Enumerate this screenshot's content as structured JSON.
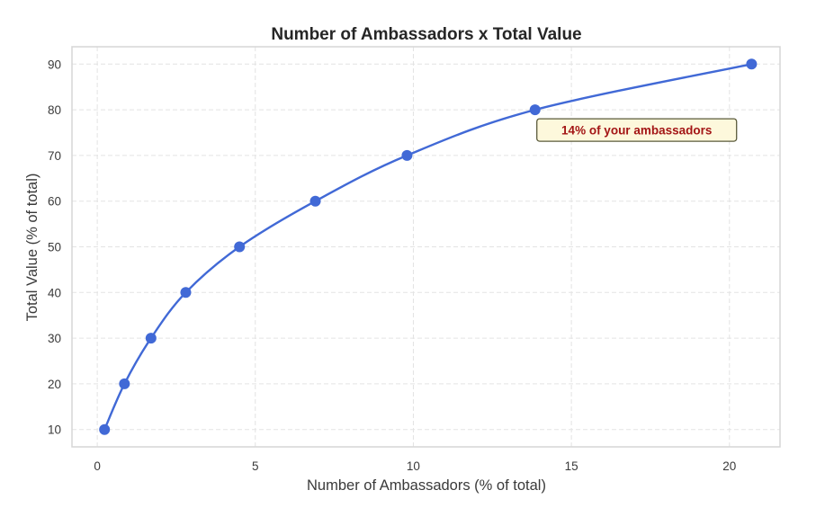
{
  "chart_data": {
    "type": "line",
    "title": "Number of Ambassadors x Total Value",
    "xlabel": "Number of Ambassadors (% of total)",
    "ylabel": "Total Value (% of total)",
    "xlim": [
      -0.8,
      21.6
    ],
    "ylim": [
      6.2,
      93.8
    ],
    "xticks": [
      0,
      5,
      10,
      15,
      20
    ],
    "yticks": [
      10,
      20,
      30,
      40,
      50,
      60,
      70,
      80,
      90
    ],
    "grid": true,
    "legend": null,
    "series": [
      {
        "name": "Total Value",
        "color": "#4169d6",
        "marker": "circle",
        "x": [
          0.23,
          0.86,
          1.7,
          2.8,
          4.5,
          6.9,
          9.8,
          13.85,
          20.7
        ],
        "y": [
          10,
          20,
          30,
          40,
          50,
          60,
          70,
          80,
          90
        ]
      }
    ],
    "annotations": [
      {
        "text": "14% of your ambassadors",
        "point": {
          "x": 13.85,
          "y": 80
        },
        "text_color": "#a31515",
        "box_fill": "#fdf8dc",
        "box_edge": "#5a5a3a"
      }
    ]
  },
  "colors": {
    "background": "#ffffff",
    "line": "#4169d6",
    "grid": "#e3e3e3",
    "frame": "#d6d6d6",
    "text": "#3a3a3a",
    "title": "#262626"
  }
}
